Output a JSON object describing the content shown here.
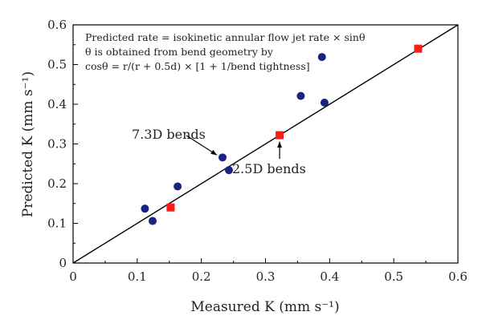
{
  "chart_data": {
    "type": "scatter",
    "xlabel": "Measured K (mm s⁻¹)",
    "ylabel": "Predicted K (mm s⁻¹)",
    "xlim": [
      0,
      0.6
    ],
    "ylim": [
      0,
      0.6
    ],
    "xticks": [
      "0",
      "0.1",
      "0.2",
      "0.3",
      "0.4",
      "0.5",
      "0.6"
    ],
    "yticks": [
      "0",
      "0.1",
      "0.2",
      "0.3",
      "0.4",
      "0.5",
      "0.6"
    ],
    "grid": false,
    "series": [
      {
        "marker": "circle",
        "color": "#1a237e",
        "points": [
          {
            "x": 0.112,
            "y": 0.137
          },
          {
            "x": 0.124,
            "y": 0.106
          },
          {
            "x": 0.163,
            "y": 0.193
          },
          {
            "x": 0.233,
            "y": 0.266
          },
          {
            "x": 0.243,
            "y": 0.234
          },
          {
            "x": 0.355,
            "y": 0.421
          },
          {
            "x": 0.388,
            "y": 0.519
          },
          {
            "x": 0.392,
            "y": 0.404
          }
        ]
      },
      {
        "marker": "square",
        "color": "#ff1a1a",
        "points": [
          {
            "x": 0.152,
            "y": 0.14
          },
          {
            "x": 0.322,
            "y": 0.322
          },
          {
            "x": 0.538,
            "y": 0.54
          }
        ]
      }
    ],
    "reference_line": {
      "from": [
        0,
        0
      ],
      "to": [
        0.6,
        0.6
      ],
      "color": "#000000"
    },
    "notes": [
      "Predicted rate = isokinetic annular flow jet rate × sinθ",
      "θ is obtained from bend geometry by",
      "cosθ = r/(r + 0.5d) × [1 + 1/bend tightness]"
    ],
    "annotations": [
      {
        "text": "7.3D bends",
        "target": [
          0.233,
          0.266
        ]
      },
      {
        "text": "2.5D bends",
        "target": [
          0.322,
          0.322
        ]
      }
    ]
  }
}
